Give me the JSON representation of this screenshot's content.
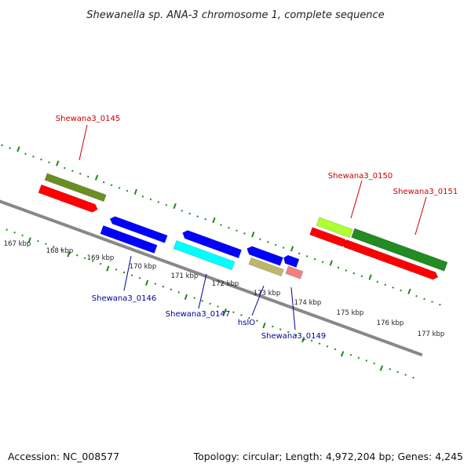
{
  "title": "Shewanella sp. ANA-3 chromosome 1, complete sequence",
  "footer": {
    "accession": "Accession: NC_008577",
    "summary": "Topology: circular; Length: 4,972,204 bp; Genes: 4,245"
  },
  "colors": {
    "backbone": "#888888",
    "tick_green": "#1a8a1a",
    "forward_label": "#cc0000",
    "reverse_label": "#000099"
  },
  "scale_labels": [
    "167 kbp",
    "168 kbp",
    "169 kbp",
    "170 kbp",
    "171 kbp",
    "172 kbp",
    "173 kbp",
    "174 kbp",
    "175 kbp",
    "176 kbp",
    "177 kbp"
  ],
  "genes": {
    "forward": [
      {
        "color": "#6b8e23"
      },
      {
        "color": "#ff0000"
      },
      {
        "color": "#adff2f"
      },
      {
        "color": "#ff0000"
      },
      {
        "color": "#228b22"
      },
      {
        "color": "#ff0000"
      }
    ],
    "reverse": [
      {
        "color": "#0000ff"
      },
      {
        "color": "#0000ff"
      },
      {
        "color": "#0000ff"
      },
      {
        "color": "#0000ff"
      },
      {
        "color": "#00ffff"
      },
      {
        "color": "#0000ff"
      },
      {
        "color": "#0000ff"
      },
      {
        "color": "#bdb76b"
      },
      {
        "color": "#f08080"
      }
    ]
  },
  "labels": {
    "forward": [
      "Shewana3_0145",
      "Shewana3_0150",
      "Shewana3_0151"
    ],
    "reverse": [
      "Shewana3_0146",
      "Shewana3_0147",
      "hslO",
      "Shewana3_0149"
    ]
  }
}
